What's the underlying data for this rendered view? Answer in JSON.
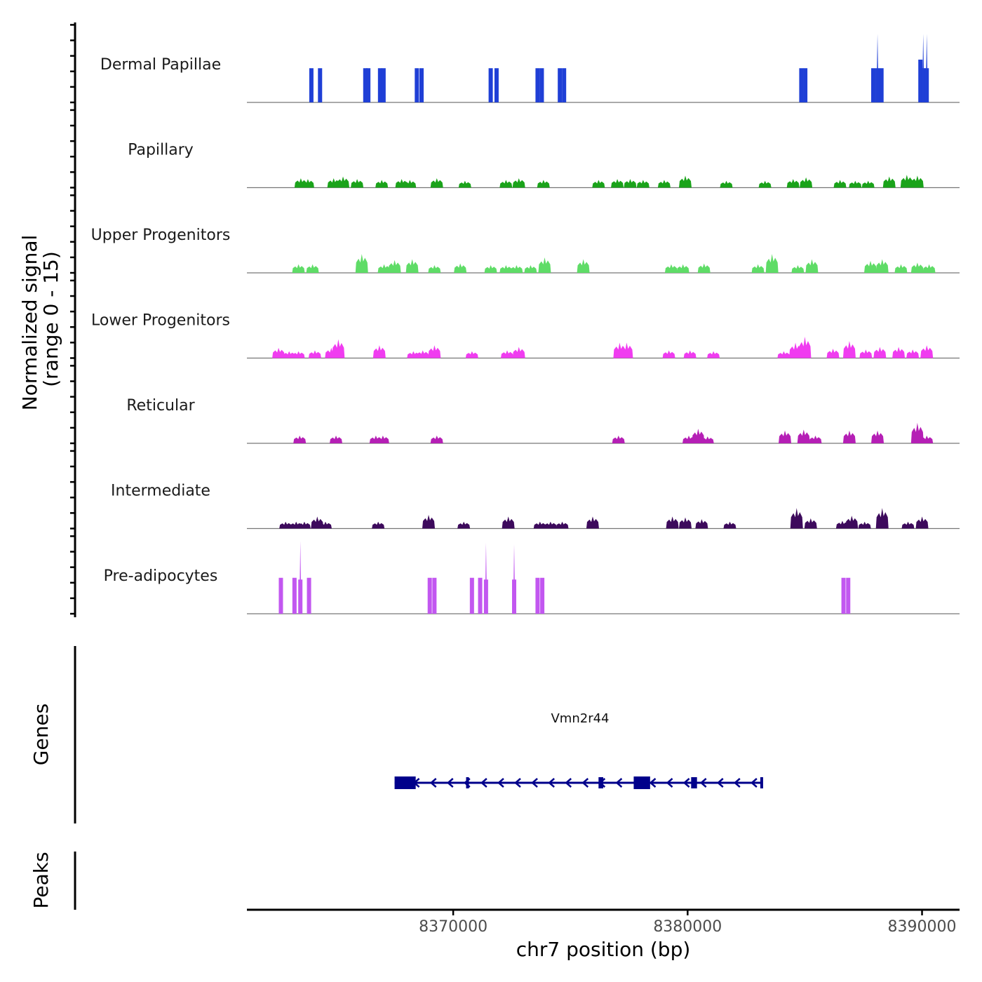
{
  "chart_data": {
    "type": "area",
    "title": "",
    "ylabel_line1": "Normalized signal",
    "ylabel_line2": "(range 0 - 15)",
    "yrange": [
      0,
      15
    ],
    "xlabel": "chr7 position (bp)",
    "xlim": [
      8361200,
      8391600
    ],
    "xticks": [
      {
        "value": 8370000,
        "label": "8370000"
      },
      {
        "value": 8380000,
        "label": "8380000"
      },
      {
        "value": 8390000,
        "label": "8390000"
      }
    ],
    "genes_label": "Genes",
    "peaks_label": "Peaks",
    "series": [
      {
        "name": "Dermal Papillae",
        "color": "#1f3fd6",
        "style": "bar",
        "peaks": [
          [
            8363950,
            4
          ],
          [
            8364320,
            4
          ],
          [
            8366250,
            4
          ],
          [
            8366380,
            4
          ],
          [
            8366880,
            4
          ],
          [
            8367030,
            4
          ],
          [
            8368450,
            4
          ],
          [
            8368650,
            4
          ],
          [
            8371600,
            4
          ],
          [
            8371850,
            4
          ],
          [
            8373600,
            4
          ],
          [
            8373780,
            4
          ],
          [
            8374550,
            4
          ],
          [
            8374730,
            4
          ],
          [
            8384850,
            4
          ],
          [
            8385020,
            4
          ],
          [
            8387920,
            4
          ],
          [
            8388100,
            8
          ],
          [
            8388270,
            4
          ],
          [
            8389930,
            5
          ],
          [
            8390050,
            8
          ],
          [
            8390200,
            8
          ]
        ]
      },
      {
        "name": "Papillary",
        "color": "#1aa31a",
        "style": "cluster",
        "peaks": [
          [
            8363500,
            1.1
          ],
          [
            8363800,
            1.0
          ],
          [
            8364900,
            1.1
          ],
          [
            8365300,
            1.3
          ],
          [
            8365900,
            1.0
          ],
          [
            8366950,
            0.9
          ],
          [
            8367800,
            1.0
          ],
          [
            8368150,
            0.9
          ],
          [
            8369300,
            1.1
          ],
          [
            8370500,
            0.8
          ],
          [
            8372250,
            0.9
          ],
          [
            8372800,
            1.1
          ],
          [
            8373850,
            0.9
          ],
          [
            8376200,
            0.9
          ],
          [
            8377000,
            1.0
          ],
          [
            8377550,
            1.0
          ],
          [
            8378100,
            0.9
          ],
          [
            8379000,
            0.9
          ],
          [
            8379900,
            1.4
          ],
          [
            8381650,
            0.8
          ],
          [
            8383300,
            0.8
          ],
          [
            8384500,
            1.0
          ],
          [
            8385050,
            1.2
          ],
          [
            8386500,
            0.9
          ],
          [
            8387150,
            0.8
          ],
          [
            8387700,
            0.8
          ],
          [
            8388600,
            1.3
          ],
          [
            8389350,
            1.5
          ],
          [
            8389800,
            1.4
          ]
        ]
      },
      {
        "name": "Upper Progenitors",
        "color": "#5fdc67",
        "style": "cluster",
        "peaks": [
          [
            8363400,
            1.0
          ],
          [
            8364000,
            1.0
          ],
          [
            8366100,
            2.2
          ],
          [
            8367050,
            1.0
          ],
          [
            8367500,
            1.5
          ],
          [
            8368250,
            1.6
          ],
          [
            8369200,
            0.9
          ],
          [
            8370300,
            1.1
          ],
          [
            8371600,
            0.9
          ],
          [
            8372250,
            0.9
          ],
          [
            8372700,
            0.9
          ],
          [
            8373300,
            0.9
          ],
          [
            8373900,
            1.8
          ],
          [
            8375550,
            1.6
          ],
          [
            8379300,
            1.0
          ],
          [
            8379800,
            1.0
          ],
          [
            8380700,
            1.1
          ],
          [
            8383000,
            1.0
          ],
          [
            8383600,
            2.2
          ],
          [
            8384700,
            0.9
          ],
          [
            8385300,
            1.6
          ],
          [
            8387800,
            1.4
          ],
          [
            8388300,
            1.6
          ],
          [
            8389100,
            1.0
          ],
          [
            8389800,
            1.2
          ],
          [
            8390300,
            1.0
          ]
        ]
      },
      {
        "name": "Lower Progenitors",
        "color": "#f03cf0",
        "style": "cluster",
        "peaks": [
          [
            8362550,
            1.2
          ],
          [
            8363000,
            0.8
          ],
          [
            8363400,
            0.8
          ],
          [
            8364100,
            0.9
          ],
          [
            8364800,
            1.2
          ],
          [
            8365100,
            2.2
          ],
          [
            8366850,
            1.5
          ],
          [
            8368300,
            0.8
          ],
          [
            8368700,
            0.9
          ],
          [
            8369200,
            1.5
          ],
          [
            8370800,
            0.8
          ],
          [
            8372300,
            0.9
          ],
          [
            8372800,
            1.3
          ],
          [
            8377100,
            1.8
          ],
          [
            8377400,
            1.8
          ],
          [
            8379200,
            0.9
          ],
          [
            8380100,
            0.9
          ],
          [
            8381100,
            0.8
          ],
          [
            8384100,
            0.8
          ],
          [
            8384600,
            1.8
          ],
          [
            8385000,
            2.5
          ],
          [
            8386200,
            1.1
          ],
          [
            8386900,
            2.0
          ],
          [
            8387600,
            1.0
          ],
          [
            8388200,
            1.3
          ],
          [
            8389000,
            1.3
          ],
          [
            8389600,
            1.0
          ],
          [
            8390200,
            1.5
          ]
        ]
      },
      {
        "name": "Reticular",
        "color": "#b51fb5",
        "style": "cluster",
        "peaks": [
          [
            8363450,
            0.9
          ],
          [
            8365000,
            0.9
          ],
          [
            8366700,
            0.9
          ],
          [
            8367000,
            0.9
          ],
          [
            8369300,
            0.9
          ],
          [
            8377050,
            0.9
          ],
          [
            8380050,
            0.9
          ],
          [
            8380450,
            1.7
          ],
          [
            8380850,
            0.8
          ],
          [
            8384150,
            1.5
          ],
          [
            8384950,
            1.6
          ],
          [
            8385450,
            0.9
          ],
          [
            8386900,
            1.5
          ],
          [
            8388100,
            1.5
          ],
          [
            8389800,
            2.4
          ],
          [
            8390200,
            0.9
          ]
        ]
      },
      {
        "name": "Intermediate",
        "color": "#3d0a5c",
        "style": "cluster",
        "peaks": [
          [
            8362850,
            0.8
          ],
          [
            8363300,
            0.8
          ],
          [
            8363650,
            0.8
          ],
          [
            8364200,
            1.4
          ],
          [
            8364550,
            0.8
          ],
          [
            8366800,
            0.8
          ],
          [
            8368950,
            1.6
          ],
          [
            8370450,
            0.8
          ],
          [
            8372350,
            1.4
          ],
          [
            8373700,
            0.8
          ],
          [
            8374150,
            0.8
          ],
          [
            8374650,
            0.8
          ],
          [
            8375950,
            1.4
          ],
          [
            8379350,
            1.4
          ],
          [
            8379900,
            1.3
          ],
          [
            8380600,
            1.1
          ],
          [
            8381800,
            0.8
          ],
          [
            8384650,
            2.4
          ],
          [
            8385250,
            1.2
          ],
          [
            8386600,
            0.9
          ],
          [
            8387000,
            1.5
          ],
          [
            8387550,
            0.8
          ],
          [
            8388300,
            2.4
          ],
          [
            8389400,
            0.8
          ],
          [
            8390000,
            1.4
          ]
        ]
      },
      {
        "name": "Pre-adipocytes",
        "color": "#c257f0",
        "style": "bar",
        "peaks": [
          [
            8362650,
            4.2
          ],
          [
            8363230,
            4.2
          ],
          [
            8363480,
            8.5
          ],
          [
            8363850,
            4.2
          ],
          [
            8369000,
            4.2
          ],
          [
            8369200,
            4.2
          ],
          [
            8370800,
            4.2
          ],
          [
            8371150,
            4.2
          ],
          [
            8371400,
            8.3
          ],
          [
            8372600,
            8.1
          ],
          [
            8373600,
            4.2
          ],
          [
            8373800,
            4.2
          ],
          [
            8386650,
            4.2
          ],
          [
            8386850,
            4.2
          ]
        ]
      }
    ],
    "gene": {
      "name": "Vmn2r44",
      "strand": "-",
      "start": 8367500,
      "end": 8383200,
      "exons": [
        [
          8367500,
          8368400
        ],
        [
          8370550,
          8370650
        ],
        [
          8376200,
          8376400
        ],
        [
          8377700,
          8378400
        ],
        [
          8380150,
          8380400
        ],
        [
          8383100,
          8383200
        ]
      ]
    }
  }
}
